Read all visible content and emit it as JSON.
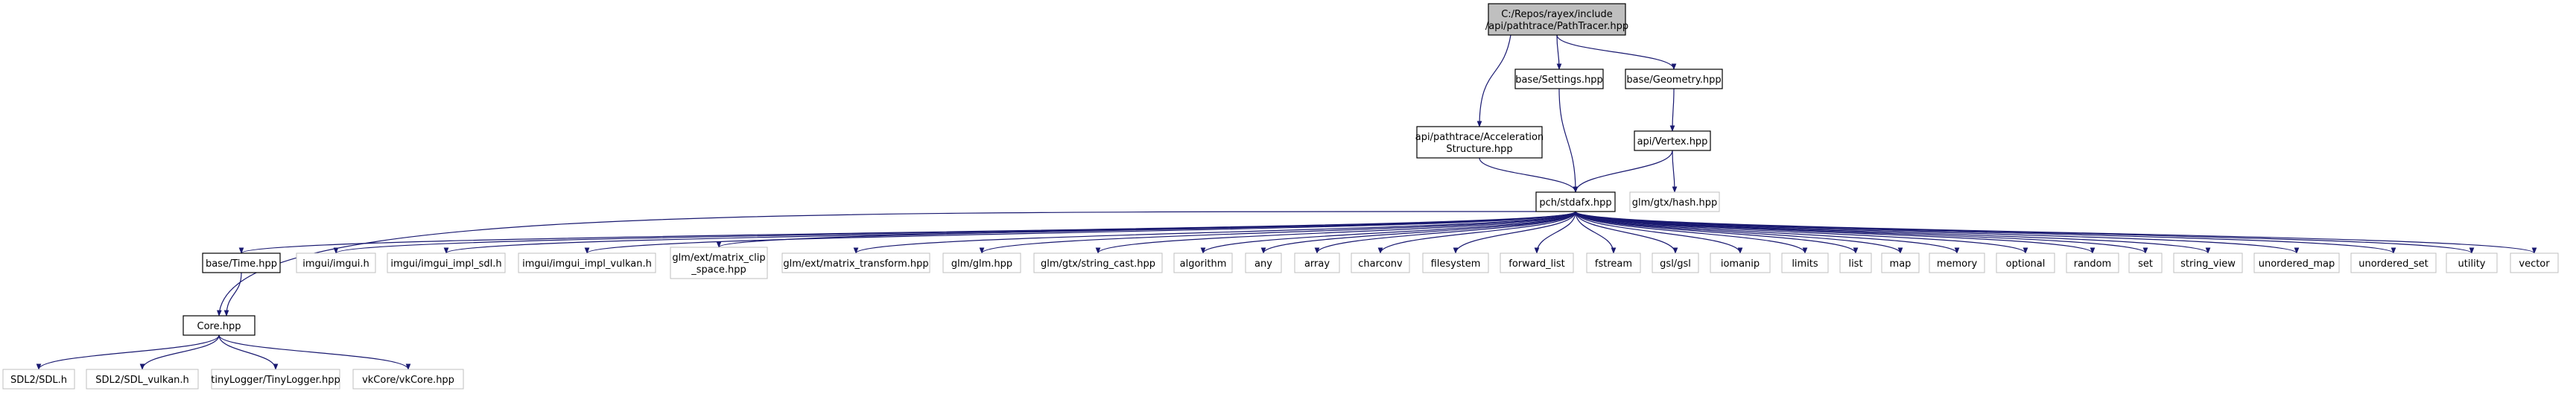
{
  "colors": {
    "edge": "#191970",
    "file_border": "#000000",
    "external_border": "#bfbfbf",
    "root_fill": "#bfbfbf",
    "background": "#ffffff"
  },
  "nodes": [
    {
      "id": "root",
      "kind": "root",
      "lines": [
        "C:/Repos/rayex/include",
        "/api/pathtrace/PathTracer.hpp"
      ]
    },
    {
      "id": "settings",
      "kind": "file",
      "lines": [
        "base/Settings.hpp"
      ]
    },
    {
      "id": "geometry",
      "kind": "file",
      "lines": [
        "base/Geometry.hpp"
      ]
    },
    {
      "id": "accel",
      "kind": "file",
      "lines": [
        "api/pathtrace/Acceleration",
        "Structure.hpp"
      ]
    },
    {
      "id": "vertex",
      "kind": "file",
      "lines": [
        "api/Vertex.hpp"
      ]
    },
    {
      "id": "glmhash",
      "kind": "ext",
      "lines": [
        "glm/gtx/hash.hpp"
      ]
    },
    {
      "id": "stdafx",
      "kind": "file",
      "lines": [
        "pch/stdafx.hpp"
      ]
    },
    {
      "id": "time",
      "kind": "file",
      "lines": [
        "base/Time.hpp"
      ]
    },
    {
      "id": "imgui",
      "kind": "ext",
      "lines": [
        "imgui/imgui.h"
      ]
    },
    {
      "id": "imgui_sdl",
      "kind": "ext",
      "lines": [
        "imgui/imgui_impl_sdl.h"
      ]
    },
    {
      "id": "imgui_vk",
      "kind": "ext",
      "lines": [
        "imgui/imgui_impl_vulkan.h"
      ]
    },
    {
      "id": "glm_clip",
      "kind": "ext",
      "lines": [
        "glm/ext/matrix_clip",
        "_space.hpp"
      ]
    },
    {
      "id": "glm_mt",
      "kind": "ext",
      "lines": [
        "glm/ext/matrix_transform.hpp"
      ]
    },
    {
      "id": "glm_glm",
      "kind": "ext",
      "lines": [
        "glm/glm.hpp"
      ]
    },
    {
      "id": "glm_sc",
      "kind": "ext",
      "lines": [
        "glm/gtx/string_cast.hpp"
      ]
    },
    {
      "id": "algorithm",
      "kind": "ext",
      "lines": [
        "algorithm"
      ]
    },
    {
      "id": "any",
      "kind": "ext",
      "lines": [
        "any"
      ]
    },
    {
      "id": "array",
      "kind": "ext",
      "lines": [
        "array"
      ]
    },
    {
      "id": "charconv",
      "kind": "ext",
      "lines": [
        "charconv"
      ]
    },
    {
      "id": "filesystem",
      "kind": "ext",
      "lines": [
        "filesystem"
      ]
    },
    {
      "id": "forward_list",
      "kind": "ext",
      "lines": [
        "forward_list"
      ]
    },
    {
      "id": "fstream",
      "kind": "ext",
      "lines": [
        "fstream"
      ]
    },
    {
      "id": "gsl",
      "kind": "ext",
      "lines": [
        "gsl/gsl"
      ]
    },
    {
      "id": "iomanip",
      "kind": "ext",
      "lines": [
        "iomanip"
      ]
    },
    {
      "id": "limits",
      "kind": "ext",
      "lines": [
        "limits"
      ]
    },
    {
      "id": "list",
      "kind": "ext",
      "lines": [
        "list"
      ]
    },
    {
      "id": "map",
      "kind": "ext",
      "lines": [
        "map"
      ]
    },
    {
      "id": "memory",
      "kind": "ext",
      "lines": [
        "memory"
      ]
    },
    {
      "id": "optional",
      "kind": "ext",
      "lines": [
        "optional"
      ]
    },
    {
      "id": "random",
      "kind": "ext",
      "lines": [
        "random"
      ]
    },
    {
      "id": "set",
      "kind": "ext",
      "lines": [
        "set"
      ]
    },
    {
      "id": "string_view",
      "kind": "ext",
      "lines": [
        "string_view"
      ]
    },
    {
      "id": "unordered_map",
      "kind": "ext",
      "lines": [
        "unordered_map"
      ]
    },
    {
      "id": "unordered_set",
      "kind": "ext",
      "lines": [
        "unordered_set"
      ]
    },
    {
      "id": "utility",
      "kind": "ext",
      "lines": [
        "utility"
      ]
    },
    {
      "id": "vector",
      "kind": "ext",
      "lines": [
        "vector"
      ]
    },
    {
      "id": "core",
      "kind": "file",
      "lines": [
        "Core.hpp"
      ]
    },
    {
      "id": "sdl",
      "kind": "ext",
      "lines": [
        "SDL2/SDL.h"
      ]
    },
    {
      "id": "sdl_vk",
      "kind": "ext",
      "lines": [
        "SDL2/SDL_vulkan.h"
      ]
    },
    {
      "id": "tinylogger",
      "kind": "ext",
      "lines": [
        "tinyLogger/TinyLogger.hpp"
      ]
    },
    {
      "id": "vkcore",
      "kind": "ext",
      "lines": [
        "vkCore/vkCore.hpp"
      ]
    }
  ],
  "edges": [
    [
      "root",
      "accel"
    ],
    [
      "root",
      "settings"
    ],
    [
      "root",
      "geometry"
    ],
    [
      "accel",
      "stdafx"
    ],
    [
      "settings",
      "stdafx"
    ],
    [
      "geometry",
      "vertex"
    ],
    [
      "vertex",
      "stdafx"
    ],
    [
      "vertex",
      "glmhash"
    ],
    [
      "stdafx",
      "time"
    ],
    [
      "stdafx",
      "core"
    ],
    [
      "stdafx",
      "imgui"
    ],
    [
      "stdafx",
      "imgui_sdl"
    ],
    [
      "stdafx",
      "imgui_vk"
    ],
    [
      "stdafx",
      "glm_clip"
    ],
    [
      "stdafx",
      "glm_mt"
    ],
    [
      "stdafx",
      "glm_glm"
    ],
    [
      "stdafx",
      "glm_sc"
    ],
    [
      "stdafx",
      "algorithm"
    ],
    [
      "stdafx",
      "any"
    ],
    [
      "stdafx",
      "array"
    ],
    [
      "stdafx",
      "charconv"
    ],
    [
      "stdafx",
      "filesystem"
    ],
    [
      "stdafx",
      "forward_list"
    ],
    [
      "stdafx",
      "fstream"
    ],
    [
      "stdafx",
      "gsl"
    ],
    [
      "stdafx",
      "iomanip"
    ],
    [
      "stdafx",
      "limits"
    ],
    [
      "stdafx",
      "list"
    ],
    [
      "stdafx",
      "map"
    ],
    [
      "stdafx",
      "memory"
    ],
    [
      "stdafx",
      "optional"
    ],
    [
      "stdafx",
      "random"
    ],
    [
      "stdafx",
      "set"
    ],
    [
      "stdafx",
      "string_view"
    ],
    [
      "stdafx",
      "unordered_map"
    ],
    [
      "stdafx",
      "unordered_set"
    ],
    [
      "stdafx",
      "utility"
    ],
    [
      "stdafx",
      "vector"
    ],
    [
      "time",
      "core"
    ],
    [
      "core",
      "sdl"
    ],
    [
      "core",
      "sdl_vk"
    ],
    [
      "core",
      "tinylogger"
    ],
    [
      "core",
      "vkcore"
    ]
  ]
}
